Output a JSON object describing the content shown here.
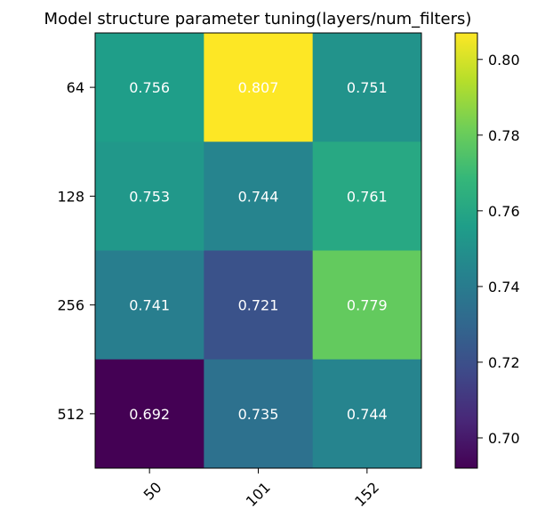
{
  "chart_data": {
    "type": "heatmap",
    "title": "Model structure parameter tuning(layers/num_filters)",
    "x_categories": [
      "50",
      "101",
      "152"
    ],
    "y_categories": [
      "64",
      "128",
      "256",
      "512"
    ],
    "values": [
      [
        0.756,
        0.807,
        0.751
      ],
      [
        0.753,
        0.744,
        0.761
      ],
      [
        0.741,
        0.721,
        0.779
      ],
      [
        0.692,
        0.735,
        0.744
      ]
    ],
    "value_labels": [
      [
        "0.756",
        "0.807",
        "0.751"
      ],
      [
        "0.753",
        "0.744",
        "0.761"
      ],
      [
        "0.741",
        "0.721",
        "0.779"
      ],
      [
        "0.692",
        "0.735",
        "0.744"
      ]
    ],
    "colormap": "viridis",
    "color_range": [
      0.692,
      0.807
    ],
    "colorbar_ticks": [
      "0.70",
      "0.72",
      "0.74",
      "0.76",
      "0.78",
      "0.80"
    ],
    "colorbar_tick_values": [
      0.7,
      0.72,
      0.74,
      0.76,
      0.78,
      0.8
    ],
    "colorbar_placement": "right",
    "grid": false,
    "x_tick_rotation_deg": 45
  }
}
